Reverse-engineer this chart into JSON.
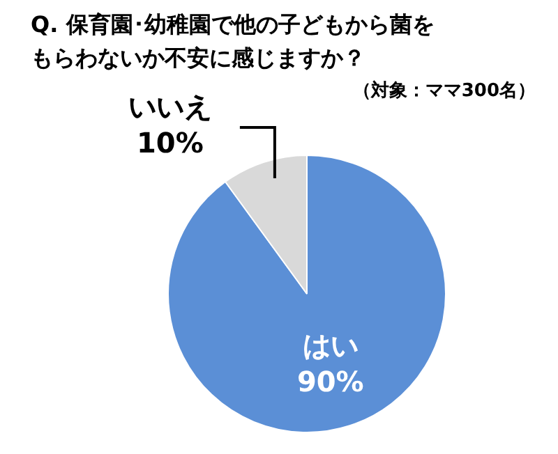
{
  "chart_data": {
    "type": "pie",
    "title": "Q.  保育園･幼稚園で他の子どもから菌をもらわないか不安に感じますか？",
    "subtitle": "（対象：ママ300名）",
    "categories": [
      "はい",
      "いいえ"
    ],
    "values": [
      90,
      10
    ],
    "value_labels": [
      "90%",
      "10%"
    ],
    "colors": [
      "#5b8fd6",
      "#d9d9d9"
    ],
    "legend": false
  }
}
